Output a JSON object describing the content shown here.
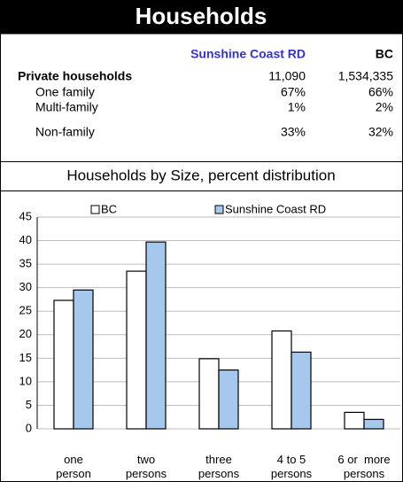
{
  "header": {
    "title": "Households"
  },
  "table": {
    "columns": [
      "Sunshine Coast RD",
      "BC"
    ],
    "rows": [
      [
        "Private households",
        "11,090",
        "1,534,335"
      ],
      [
        "One family",
        "67%",
        "66%"
      ],
      [
        "Multi-family",
        "1%",
        "2%"
      ],
      [
        "Non-family",
        "33%",
        "32%"
      ]
    ]
  },
  "chart_data": {
    "type": "bar",
    "title": "Households by Size, percent distribution",
    "categories": [
      "one person",
      "two persons",
      "three persons",
      "4 to 5 persons",
      "6 or  more persons"
    ],
    "series": [
      {
        "name": "BC",
        "color": "#ffffff",
        "values": [
          27.3,
          33.5,
          14.9,
          20.8,
          3.5
        ]
      },
      {
        "name": "Sunshine Coast RD",
        "color": "#a6c8ec",
        "values": [
          29.5,
          39.7,
          12.5,
          16.3,
          2.0
        ]
      }
    ],
    "ylim": [
      0,
      45
    ],
    "yticks": [
      0,
      5,
      10,
      15,
      20,
      25,
      30,
      35,
      40,
      45
    ],
    "grid": true,
    "legend": "top"
  }
}
